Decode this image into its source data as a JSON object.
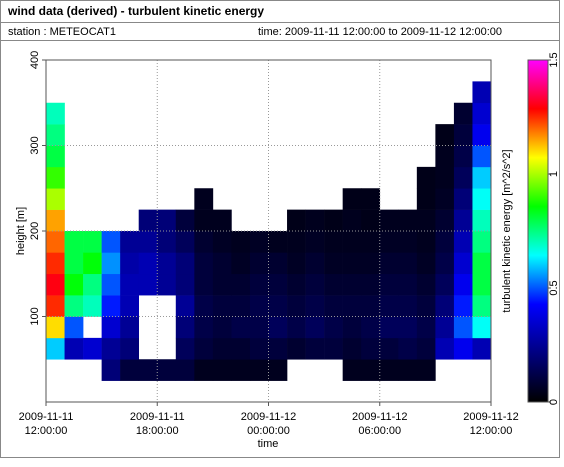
{
  "chart_data": {
    "type": "heatmap",
    "title": "wind data (derived) - turbulent kinetic energy",
    "station": "station : METEOCAT1",
    "time_range": "time: 2009-11-11 12:00:00 to 2009-11-12 12:00:00",
    "xlabel": "time",
    "ylabel": "height [m]",
    "colorbar_label": "turbulent kinetic energy [m^2/s^2]",
    "x": [
      "2009-11-11 12:00:00",
      "2009-11-11 13:00:00",
      "2009-11-11 14:00:00",
      "2009-11-11 15:00:00",
      "2009-11-11 16:00:00",
      "2009-11-11 17:00:00",
      "2009-11-11 18:00:00",
      "2009-11-11 19:00:00",
      "2009-11-11 20:00:00",
      "2009-11-11 21:00:00",
      "2009-11-11 22:00:00",
      "2009-11-11 23:00:00",
      "2009-11-12 00:00:00",
      "2009-11-12 01:00:00",
      "2009-11-12 02:00:00",
      "2009-11-12 03:00:00",
      "2009-11-12 04:00:00",
      "2009-11-12 05:00:00",
      "2009-11-12 06:00:00",
      "2009-11-12 07:00:00",
      "2009-11-12 08:00:00",
      "2009-11-12 09:00:00",
      "2009-11-12 10:00:00",
      "2009-11-12 11:00:00",
      "2009-11-12 12:00:00"
    ],
    "y": [
      25,
      50,
      75,
      100,
      125,
      150,
      175,
      200,
      225,
      250,
      275,
      300,
      325,
      350,
      375
    ],
    "z": [
      [
        null,
        0.6,
        1.1,
        1.25,
        1.3,
        1.25,
        1.2,
        1.15,
        1.0,
        0.9,
        0.8,
        0.75,
        0.7,
        null
      ],
      [
        null,
        0.3,
        0.5,
        0.75,
        0.85,
        0.8,
        0.8,
        null,
        null,
        null,
        null,
        null,
        null,
        null
      ],
      [
        null,
        0.35,
        null,
        0.7,
        0.75,
        0.85,
        0.8,
        null,
        null,
        null,
        null,
        null,
        null,
        null
      ],
      [
        0.2,
        0.25,
        0.35,
        0.45,
        0.5,
        0.55,
        0.5,
        null,
        null,
        null,
        null,
        null,
        null,
        null
      ],
      [
        0.1,
        0.2,
        0.25,
        0.3,
        0.3,
        0.28,
        0.25,
        null,
        null,
        null,
        null,
        null,
        null,
        null
      ],
      [
        0.1,
        null,
        null,
        null,
        0.3,
        0.3,
        0.25,
        0.2,
        null,
        null,
        null,
        null,
        null,
        null
      ],
      [
        0.1,
        null,
        null,
        null,
        0.25,
        0.25,
        0.2,
        0.2,
        null,
        null,
        null,
        null,
        null,
        null
      ],
      [
        0.1,
        0.15,
        0.2,
        0.25,
        0.2,
        0.2,
        0.15,
        0.1,
        null,
        null,
        null,
        null,
        null,
        null
      ],
      [
        0.05,
        0.1,
        0.12,
        0.12,
        0.1,
        0.1,
        0.08,
        0.05,
        0.05,
        null,
        null,
        null,
        null,
        null
      ],
      [
        0.05,
        0.08,
        0.1,
        0.1,
        0.08,
        0.08,
        0.06,
        0.05,
        null,
        null,
        null,
        null,
        null,
        null
      ],
      [
        0.05,
        0.08,
        0.12,
        0.1,
        0.08,
        0.06,
        0.05,
        null,
        null,
        null,
        null,
        null,
        null,
        null
      ],
      [
        0.05,
        0.1,
        0.12,
        0.12,
        0.1,
        0.08,
        0.06,
        null,
        null,
        null,
        null,
        null,
        null,
        null
      ],
      [
        0.05,
        0.1,
        0.15,
        0.12,
        0.1,
        0.08,
        0.05,
        null,
        null,
        null,
        null,
        null,
        null,
        null
      ],
      [
        null,
        0.08,
        0.12,
        0.1,
        0.08,
        0.06,
        0.05,
        0.04,
        null,
        null,
        null,
        null,
        null,
        null
      ],
      [
        null,
        0.1,
        0.15,
        0.12,
        0.1,
        0.08,
        0.06,
        0.05,
        null,
        null,
        null,
        null,
        null,
        null
      ],
      [
        null,
        0.1,
        0.12,
        0.1,
        0.08,
        0.06,
        0.05,
        0.04,
        null,
        null,
        null,
        null,
        null,
        null
      ],
      [
        0.05,
        0.08,
        0.1,
        0.1,
        0.08,
        0.06,
        0.05,
        0.05,
        0.04,
        null,
        null,
        null,
        null,
        null
      ],
      [
        0.05,
        0.1,
        0.12,
        0.1,
        0.08,
        0.06,
        0.05,
        0.04,
        0.04,
        null,
        null,
        null,
        null,
        null
      ],
      [
        0.05,
        0.1,
        0.15,
        0.12,
        0.1,
        0.08,
        0.06,
        0.05,
        null,
        null,
        null,
        null,
        null,
        null
      ],
      [
        0.05,
        0.12,
        0.15,
        0.12,
        0.1,
        0.08,
        0.06,
        0.05,
        null,
        null,
        null,
        null,
        null,
        null
      ],
      [
        0.05,
        0.1,
        0.12,
        0.1,
        0.08,
        0.06,
        0.05,
        0.05,
        0.04,
        0.04,
        null,
        null,
        null,
        null
      ],
      [
        null,
        0.3,
        0.25,
        0.2,
        0.15,
        0.12,
        0.1,
        0.08,
        0.06,
        0.05,
        0.05,
        0.04,
        null,
        null
      ],
      [
        null,
        0.4,
        0.5,
        0.45,
        0.4,
        0.35,
        0.3,
        0.25,
        0.2,
        0.15,
        0.12,
        0.1,
        0.08,
        null
      ],
      [
        null,
        0.3,
        0.65,
        0.75,
        0.8,
        0.8,
        0.75,
        0.7,
        0.65,
        0.6,
        0.5,
        0.4,
        0.35,
        0.3
      ]
    ],
    "xlim": [
      "2009-11-11 12:00:00",
      "2009-11-12 12:00:00"
    ],
    "xticks": [
      {
        "value": "2009-11-11 12:00:00",
        "label": [
          "2009-11-11",
          "12:00:00"
        ]
      },
      {
        "value": "2009-11-11 18:00:00",
        "label": [
          "2009-11-11",
          "18:00:00"
        ]
      },
      {
        "value": "2009-11-12 00:00:00",
        "label": [
          "2009-11-12",
          "00:00:00"
        ]
      },
      {
        "value": "2009-11-12 06:00:00",
        "label": [
          "2009-11-12",
          "06:00:00"
        ]
      },
      {
        "value": "2009-11-12 12:00:00",
        "label": [
          "2009-11-12",
          "12:00:00"
        ]
      }
    ],
    "ylim": [
      0,
      400
    ],
    "yticks": [
      100,
      200,
      300,
      400
    ],
    "clim": [
      0,
      1.5
    ],
    "cticks": [
      0,
      0.5,
      1,
      1.5
    ],
    "colormap": [
      "#000000",
      "#000080",
      "#0000ff",
      "#00ffff",
      "#00ff00",
      "#ffff00",
      "#ff0000",
      "#ff00ff"
    ],
    "grid": true
  }
}
